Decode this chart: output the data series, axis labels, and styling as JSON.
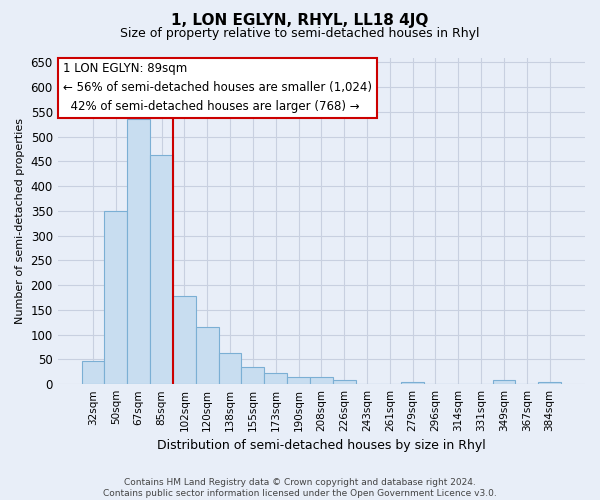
{
  "title": "1, LON EGLYN, RHYL, LL18 4JQ",
  "subtitle": "Size of property relative to semi-detached houses in Rhyl",
  "xlabel": "Distribution of semi-detached houses by size in Rhyl",
  "ylabel": "Number of semi-detached properties",
  "footer_line1": "Contains HM Land Registry data © Crown copyright and database right 2024.",
  "footer_line2": "Contains public sector information licensed under the Open Government Licence v3.0.",
  "bar_labels": [
    "32sqm",
    "50sqm",
    "67sqm",
    "85sqm",
    "102sqm",
    "120sqm",
    "138sqm",
    "155sqm",
    "173sqm",
    "190sqm",
    "208sqm",
    "226sqm",
    "243sqm",
    "261sqm",
    "279sqm",
    "296sqm",
    "314sqm",
    "331sqm",
    "349sqm",
    "367sqm",
    "384sqm"
  ],
  "bar_values": [
    47,
    349,
    536,
    464,
    178,
    115,
    62,
    35,
    22,
    14,
    14,
    8,
    0,
    0,
    5,
    0,
    0,
    0,
    9,
    0,
    5
  ],
  "bar_color": "#c8ddf0",
  "bar_edge_color": "#7bafd4",
  "property_line_x": 3.5,
  "property_sqm": 89,
  "pct_smaller": 56,
  "count_smaller": 1024,
  "pct_larger": 42,
  "count_larger": 768,
  "vline_color": "#cc0000",
  "annotation_box_color": "#ffffff",
  "annotation_box_edge": "#cc0000",
  "ylim": [
    0,
    660
  ],
  "yticks": [
    0,
    50,
    100,
    150,
    200,
    250,
    300,
    350,
    400,
    450,
    500,
    550,
    600,
    650
  ],
  "grid_color": "#c8d0e0",
  "bg_color": "#e8eef8",
  "ann_line1": "1 LON EGLYN: 89sqm",
  "ann_line2": "← 56% of semi-detached houses are smaller (1,024)",
  "ann_line3": "42% of semi-detached houses are larger (768) →"
}
